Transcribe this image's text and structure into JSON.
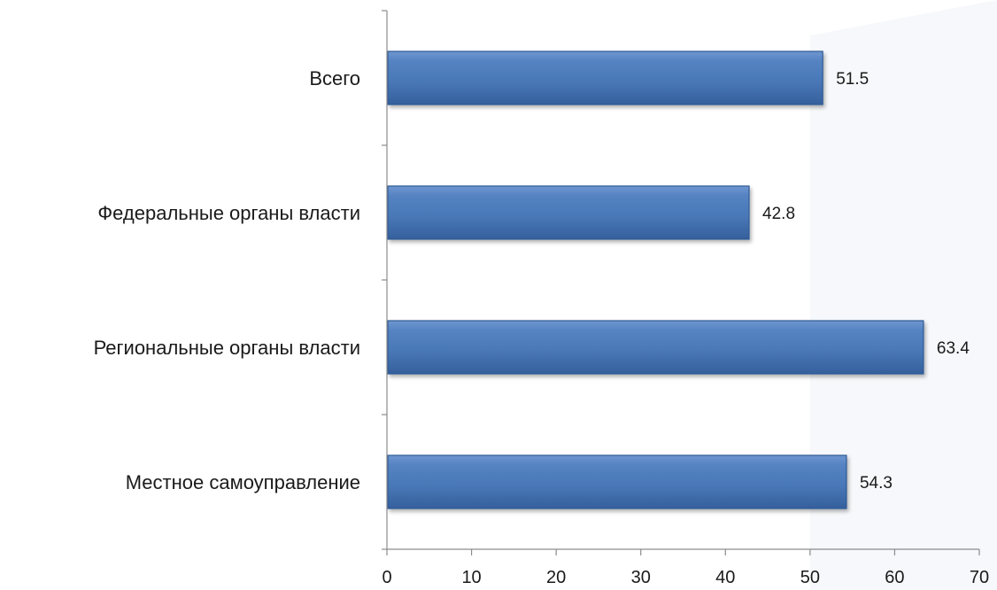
{
  "chart_data": {
    "type": "bar",
    "orientation": "horizontal",
    "categories": [
      "Всего",
      "Федеральные органы власти",
      "Региональные органы власти",
      "Местное самоуправление"
    ],
    "values": [
      51.5,
      42.8,
      63.4,
      54.3
    ],
    "data_labels": [
      "51.5",
      "42.8",
      "63.4",
      "54.3"
    ],
    "x_ticks": [
      "0",
      "10",
      "20",
      "30",
      "40",
      "50",
      "60",
      "70"
    ],
    "xlim": [
      0,
      70
    ],
    "grid": false,
    "legend": "none",
    "bar_color": "#4a78b8",
    "bar_edge_color": "#2f5a94"
  }
}
